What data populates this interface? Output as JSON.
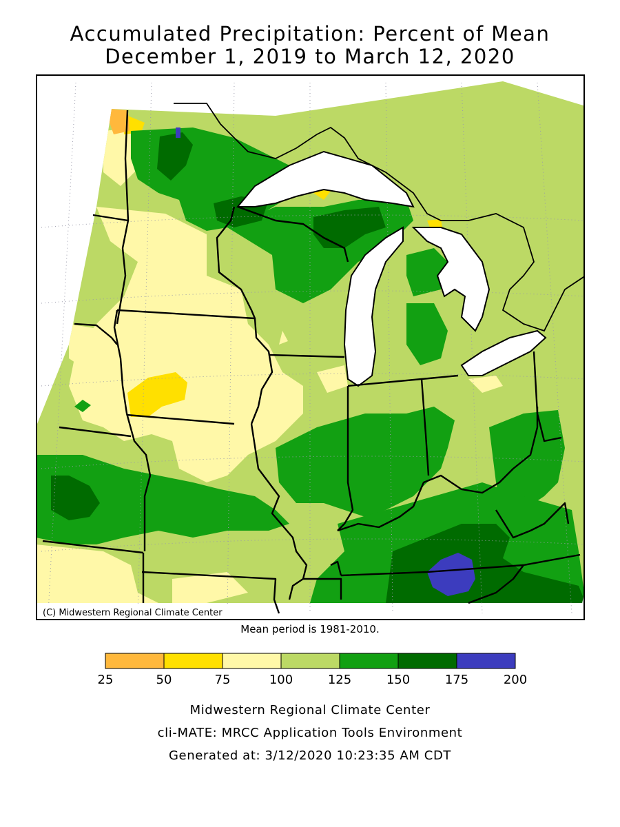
{
  "title_line1": "Accumulated Precipitation: Percent of Mean",
  "title_line2": "December 1, 2019 to March 12, 2020",
  "copyright": "(C) Midwestern Regional Climate Center",
  "mean_period": "Mean period is 1981-2010.",
  "legend": {
    "ticks": [
      "25",
      "50",
      "75",
      "100",
      "125",
      "150",
      "175",
      "200"
    ],
    "bins": [
      {
        "range": "25-50",
        "color": "#ffb83c"
      },
      {
        "range": "50-75",
        "color": "#ffe000"
      },
      {
        "range": "75-100",
        "color": "#fff8a8"
      },
      {
        "range": "100-125",
        "color": "#bcd965"
      },
      {
        "range": "125-150",
        "color": "#12a012"
      },
      {
        "range": "150-175",
        "color": "#006b00"
      },
      {
        "range": "175-200",
        "color": "#3c3cbe"
      }
    ]
  },
  "footer": {
    "line1": "Midwestern Regional Climate Center",
    "line2": "cli-MATE: MRCC Application Tools Environment",
    "line3": "Generated at: 3/12/2020 10:23:35 AM CDT"
  },
  "colors": {
    "water": "#ffffff",
    "border": "#000000",
    "grid": "#9a9aaa"
  }
}
